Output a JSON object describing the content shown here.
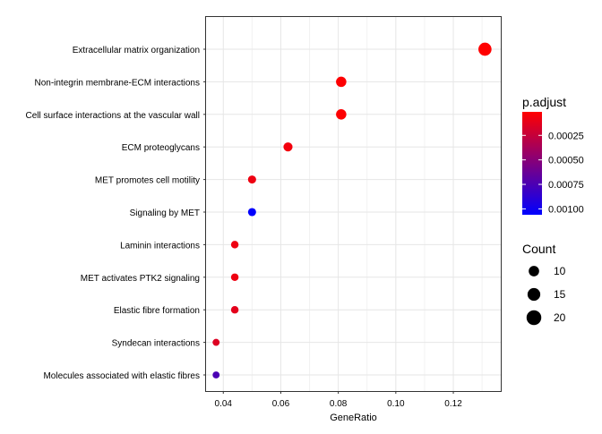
{
  "chart_data": {
    "type": "scatter",
    "xlabel": "GeneRatio",
    "ylabel": "",
    "title": "",
    "xlim": [
      0.034,
      0.1365
    ],
    "x_ticks": [
      0.04,
      0.06,
      0.08,
      0.1,
      0.12
    ],
    "x_tick_labels": [
      "0.04",
      "0.06",
      "0.08",
      "0.10",
      "0.12"
    ],
    "grid": true,
    "categories": [
      "Extracellular matrix organization",
      "Non-integrin membrane-ECM interactions",
      "Cell surface interactions at the vascular wall",
      "ECM proteoglycans",
      "MET promotes cell motility",
      "Signaling by MET",
      "Laminin interactions",
      "MET activates PTK2 signaling",
      "Elastic fibre formation",
      "Syndecan interactions",
      "Molecules associated with elastic fibres"
    ],
    "points": [
      {
        "term": "Extracellular matrix organization",
        "gene_ratio": 0.131,
        "count": 21,
        "p_adjust": 1e-05
      },
      {
        "term": "Non-integrin membrane-ECM interactions",
        "gene_ratio": 0.081,
        "count": 13,
        "p_adjust": 2e-05
      },
      {
        "term": "Cell surface interactions at the vascular wall",
        "gene_ratio": 0.081,
        "count": 13,
        "p_adjust": 2e-05
      },
      {
        "term": "ECM proteoglycans",
        "gene_ratio": 0.0625,
        "count": 10,
        "p_adjust": 6e-05
      },
      {
        "term": "MET promotes cell motility",
        "gene_ratio": 0.05,
        "count": 8,
        "p_adjust": 8e-05
      },
      {
        "term": "Signaling by MET",
        "gene_ratio": 0.05,
        "count": 8,
        "p_adjust": 0.00105
      },
      {
        "term": "Laminin interactions",
        "gene_ratio": 0.044,
        "count": 7,
        "p_adjust": 8e-05
      },
      {
        "term": "MET activates PTK2 signaling",
        "gene_ratio": 0.044,
        "count": 7,
        "p_adjust": 8e-05
      },
      {
        "term": "Elastic fibre formation",
        "gene_ratio": 0.044,
        "count": 7,
        "p_adjust": 0.00012
      },
      {
        "term": "Syndecan interactions",
        "gene_ratio": 0.0375,
        "count": 6,
        "p_adjust": 0.00015
      },
      {
        "term": "Molecules associated with elastic fibres",
        "gene_ratio": 0.0375,
        "count": 6,
        "p_adjust": 0.00075
      }
    ],
    "color_legend": {
      "title": "p.adjust",
      "domain": [
        1e-05,
        0.00106
      ],
      "low_color": "#FF0000",
      "high_color": "#0000FF",
      "ticks": [
        0.00025,
        0.0005,
        0.00075,
        0.001
      ],
      "tick_labels": [
        "0.00025",
        "0.00050",
        "0.00075",
        "0.00100"
      ]
    },
    "size_legend": {
      "title": "Count",
      "values": [
        10,
        15,
        20
      ],
      "labels": [
        "10",
        "15",
        "20"
      ]
    }
  }
}
